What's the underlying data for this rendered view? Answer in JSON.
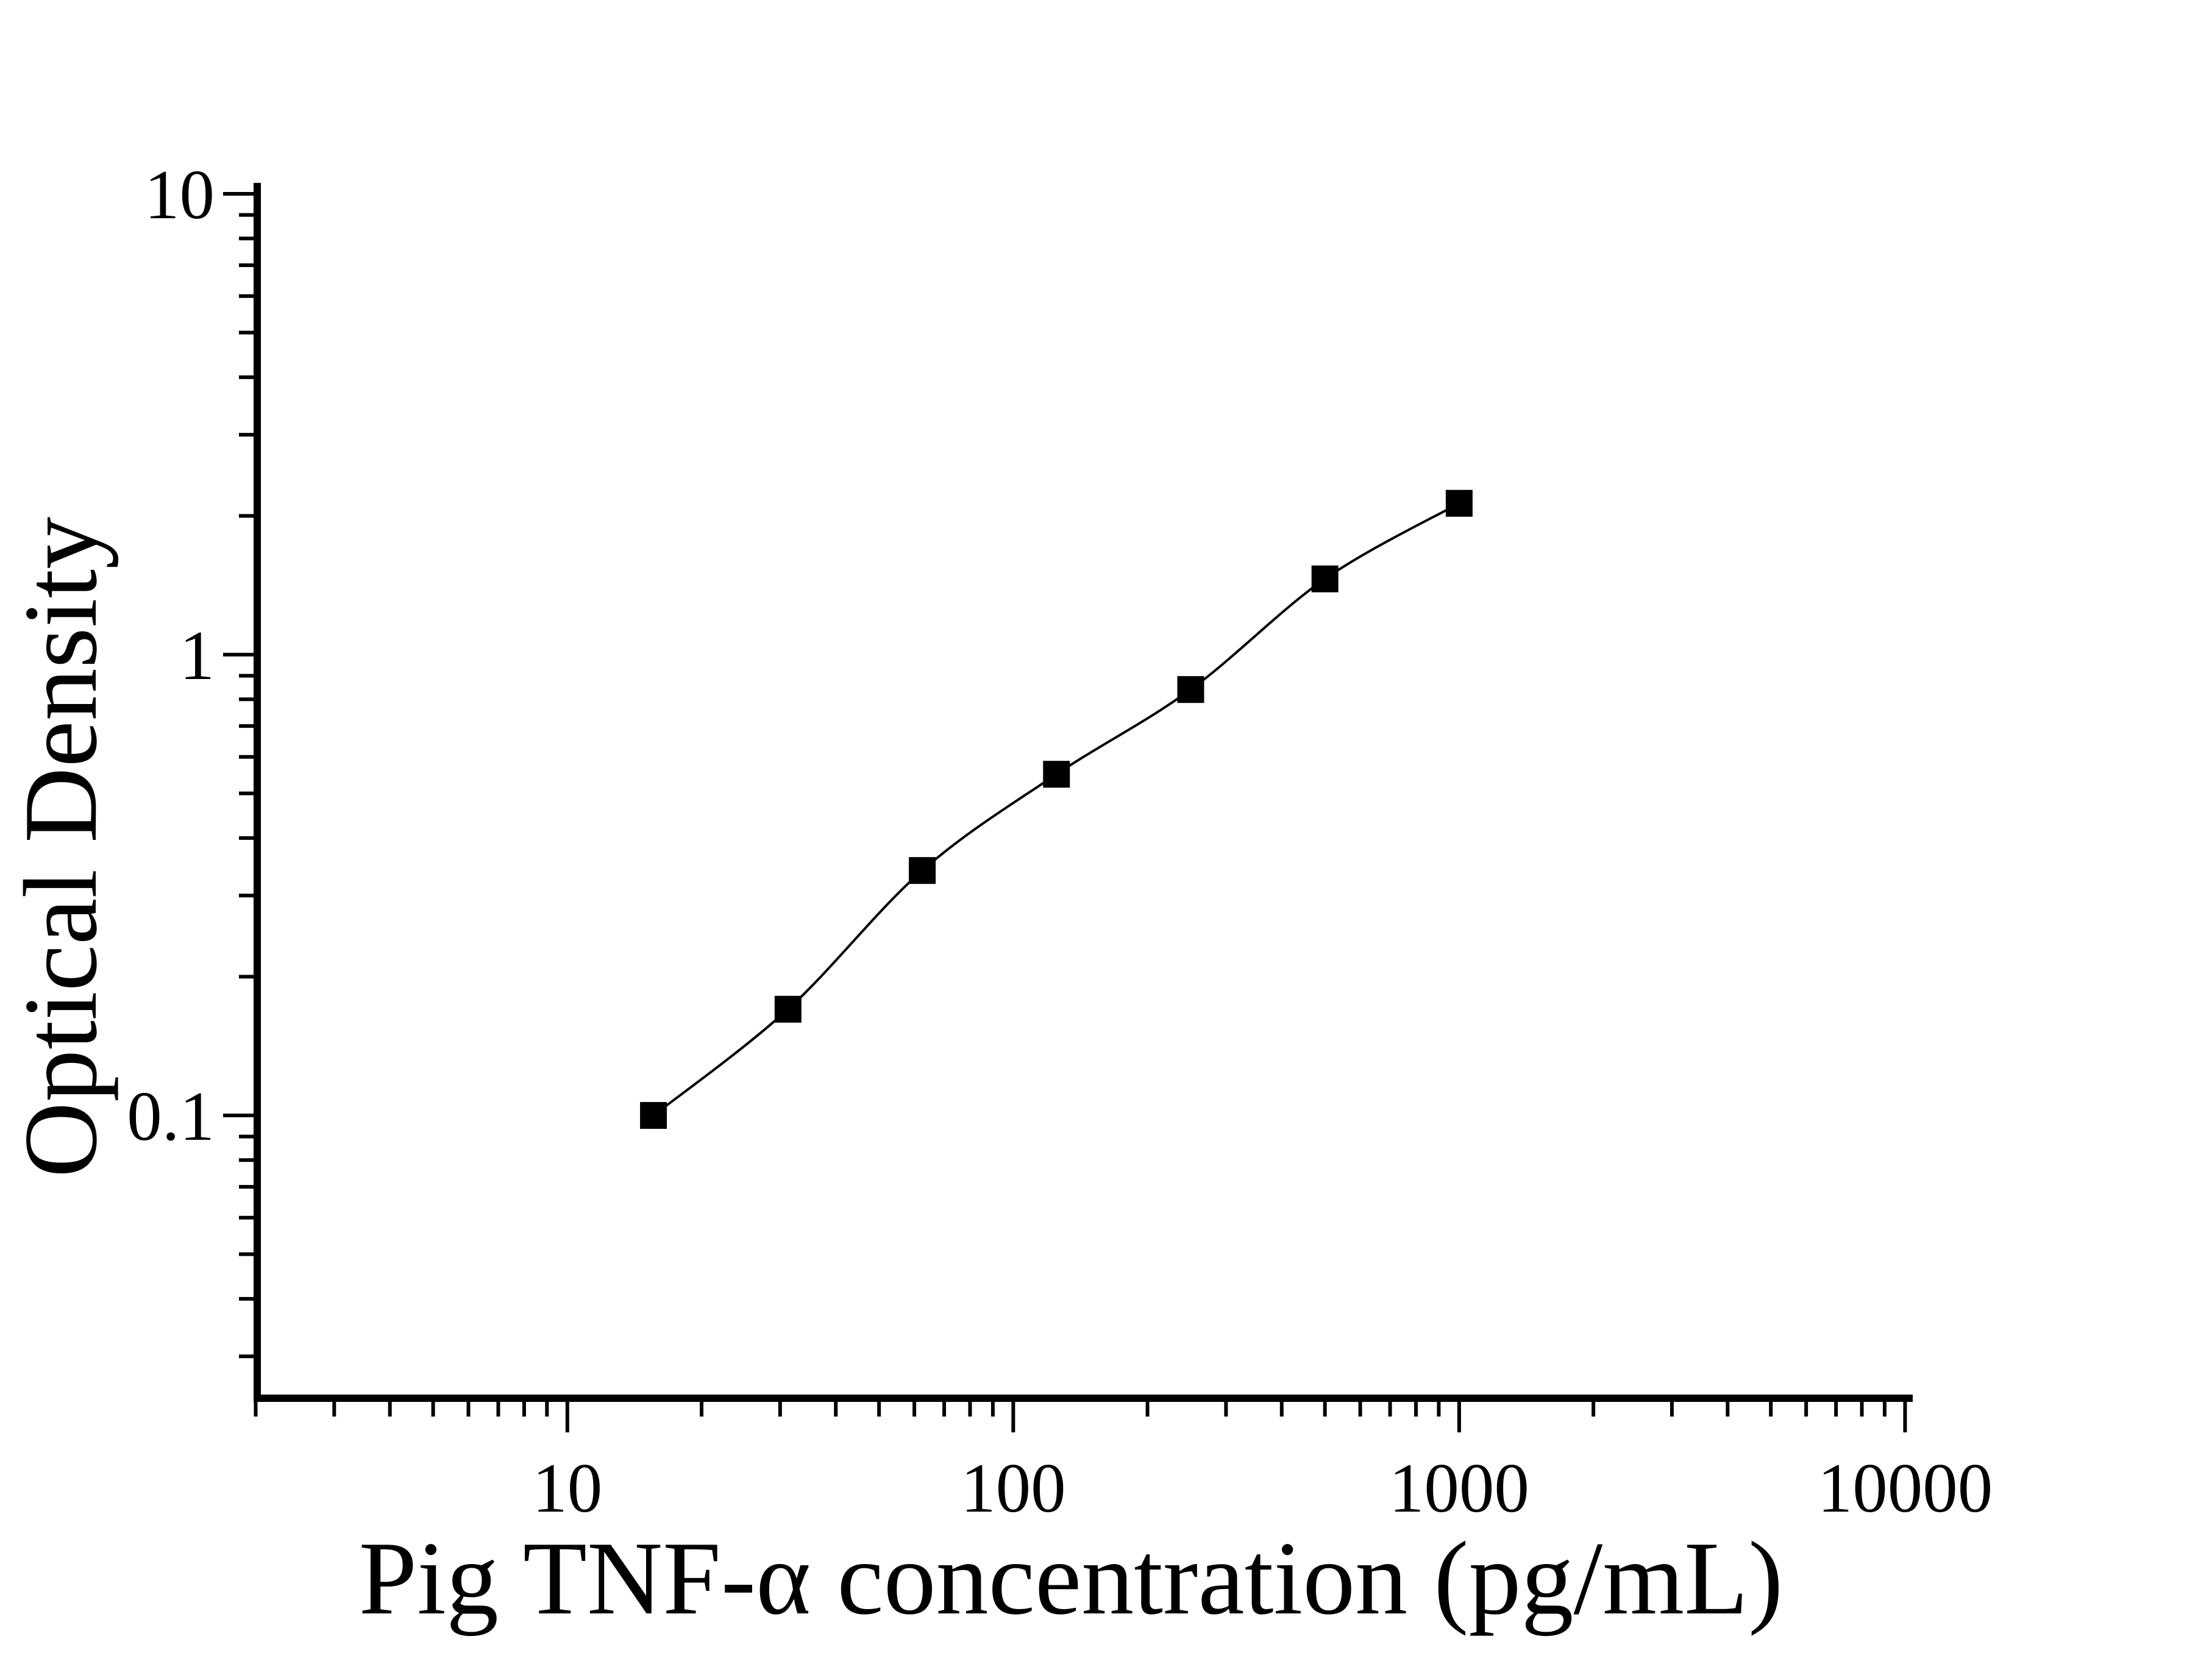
{
  "figure": {
    "background": "#ffffff",
    "ink_color": "#000000",
    "description": "ELISA standard curve, log-log scatter plot with smooth fitted line and filled square markers"
  },
  "y_axis": {
    "title": "Optical Density",
    "scale": "log",
    "range": [
      0.024,
      10
    ],
    "major_tick_values": [
      10,
      1,
      0.1
    ],
    "major_tick_labels": [
      "10",
      "1",
      "0.1"
    ],
    "minor_tick_values": [
      9,
      8,
      7,
      6,
      5,
      4,
      3,
      2,
      0.9,
      0.8,
      0.7,
      0.6,
      0.5,
      0.4,
      0.3,
      0.2,
      0.09,
      0.08,
      0.07,
      0.06,
      0.05,
      0.04,
      0.03
    ]
  },
  "x_axis": {
    "title": "Pig TNF-α concentration (pg/mL)",
    "scale": "log",
    "range": [
      2,
      10000
    ],
    "major_tick_values": [
      10,
      100,
      1000,
      10000
    ],
    "major_tick_labels": [
      "10",
      "100",
      "1000",
      "10000"
    ],
    "minor_tick_values": [
      2,
      3,
      4,
      5,
      6,
      7,
      8,
      9,
      20,
      30,
      40,
      50,
      60,
      70,
      80,
      90,
      200,
      300,
      400,
      500,
      600,
      700,
      800,
      900,
      2000,
      3000,
      4000,
      5000,
      6000,
      7000,
      8000,
      9000
    ]
  },
  "chart_data": {
    "type": "scatter",
    "title": "",
    "xlabel": "Pig TNF-α concentration (pg/mL)",
    "ylabel": "Optical Density",
    "x_scale": "log",
    "y_scale": "log",
    "xlim": [
      2,
      10000
    ],
    "ylim": [
      0.024,
      10
    ],
    "grid": false,
    "legend": false,
    "series": [
      {
        "name": "standard-curve",
        "marker": "filled-square",
        "line_style": "smooth-thin",
        "color": "#000000",
        "x": [
          15.6,
          31.25,
          62.5,
          125,
          250,
          500,
          1000
        ],
        "y": [
          0.1,
          0.17,
          0.34,
          0.55,
          0.84,
          1.46,
          2.13
        ]
      }
    ]
  }
}
